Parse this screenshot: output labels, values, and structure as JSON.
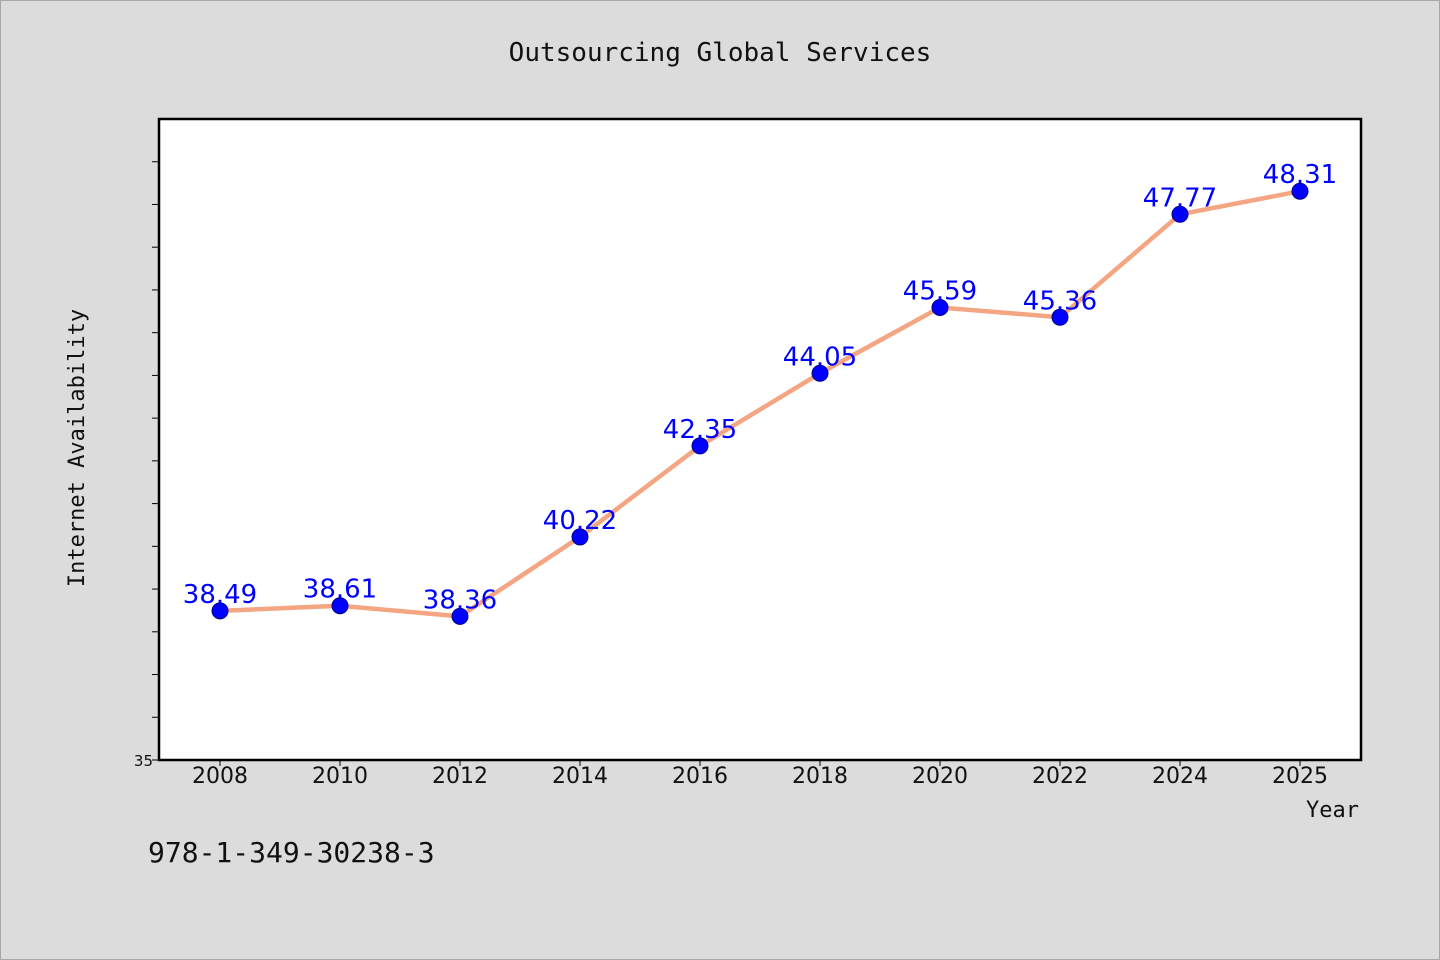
{
  "chart_data": {
    "type": "line",
    "title": "Outsourcing Global Services",
    "xlabel": "Year",
    "ylabel": "Internet Availability",
    "categories": [
      "2008",
      "2010",
      "2012",
      "2014",
      "2016",
      "2018",
      "2020",
      "2022",
      "2024",
      "2025"
    ],
    "series": [
      {
        "values": [
          38.49,
          38.61,
          38.36,
          40.22,
          42.35,
          44.05,
          45.59,
          45.36,
          47.77,
          48.31
        ],
        "labels": [
          "38.49",
          "38.61",
          "38.36",
          "40.22",
          "42.35",
          "44.05",
          "45.59",
          "45.36",
          "47.77",
          "48.31"
        ],
        "line_color": "#f4a582",
        "marker_color": "#0000ff"
      }
    ],
    "y_tick_labels": [
      "35"
    ],
    "ylim": [
      35,
      50
    ],
    "grid": false,
    "legend": "none"
  },
  "footer": {
    "isbn": "978-1-349-30238-3"
  }
}
